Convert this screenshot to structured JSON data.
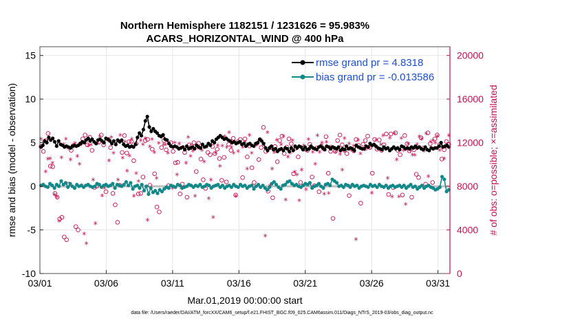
{
  "chart_data": {
    "type": "line",
    "title_line1": "Northern Hemisphere 1182151 / 1231626 = 95.983%",
    "title_line2": "ACARS_HORIZONTAL_WIND @ 400 hPa",
    "xlabel": "Mar.01,2019 00:00:00 start",
    "ylabel_left": "rmse and bias (model - observation)",
    "ylabel_right": "# of obs: o=possible; ×=assimilated",
    "footer": "data file: /Users/raeder/DAI/ATM_forcXX/CAM6_setup/f.e21.FHIST_BGC.f09_025.CAM6assim.011/Diags_NTrS_2019-03/obs_diag_output.nc",
    "x_ticks": [
      "03/01",
      "03/06",
      "03/11",
      "03/16",
      "03/21",
      "03/26",
      "03/31"
    ],
    "x_tick_days": [
      0,
      5,
      10,
      15,
      20,
      25,
      30
    ],
    "xlim": [
      0,
      30.9
    ],
    "ylim_left": [
      -10,
      16
    ],
    "y_ticks_left": [
      "-10",
      "-5",
      "0",
      "5",
      "10",
      "15"
    ],
    "ylim_right": [
      0,
      20800
    ],
    "y_ticks_right": [
      "0",
      "4000",
      "8000",
      "12000",
      "16000",
      "20000"
    ],
    "colors": {
      "rmse": "#000000",
      "bias": "#11888a",
      "obs": "#cc0e4e",
      "zero_line": "#bfbfbf",
      "legend_text": "#1d4fd6",
      "grid": "#e6e6e6"
    },
    "legend": [
      {
        "label": "rmse grand pr = 4.8318",
        "series": "rmse"
      },
      {
        "label": "bias grand pr = -0.013586",
        "series": "bias"
      }
    ],
    "series": [
      {
        "name": "rmse",
        "values": [
          4.5,
          4.7,
          5.2,
          5.0,
          5.6,
          5.3,
          5.5,
          5.1,
          4.6,
          5.2,
          4.8,
          4.7,
          4.5,
          4.6,
          4.5,
          4.4,
          4.6,
          4.7,
          4.6,
          4.7,
          4.9,
          5.1,
          5.0,
          5.3,
          5.5,
          5.2,
          5.4,
          5.1,
          4.9,
          5.3,
          5.4,
          5.2,
          5.0,
          5.5,
          5.4,
          5.2,
          4.9,
          5.2,
          4.8,
          5.3,
          5.1,
          5.3,
          4.8,
          4.6,
          4.7,
          4.5,
          4.6,
          4.5,
          4.8,
          5.6,
          6.1,
          5.8,
          6.5,
          7.5,
          8.0,
          6.8,
          6.3,
          6.6,
          6.3,
          6.1,
          5.8,
          5.7,
          5.9,
          5.4,
          5.3,
          4.9,
          4.6,
          4.5,
          4.6,
          4.5,
          4.3,
          4.4,
          4.5,
          4.2,
          4.6,
          4.3,
          4.4,
          4.5,
          4.3,
          4.7,
          4.5,
          4.4,
          4.8,
          4.5,
          4.6,
          4.9,
          4.7,
          5.2,
          5.0,
          5.4,
          5.6,
          5.8,
          5.6,
          5.4,
          5.5,
          5.3,
          5.2,
          5.0,
          5.1,
          4.9,
          5.0,
          5.1,
          4.8,
          4.9,
          4.6,
          4.8,
          4.9,
          4.7,
          4.6,
          4.9,
          5.0,
          5.4,
          5.2,
          4.9,
          4.4,
          4.1,
          4.4,
          4.6,
          4.2,
          4.3,
          4.0,
          4.2,
          4.3,
          4.1,
          4.4,
          4.3,
          4.0,
          4.4,
          4.1,
          4.6,
          4.4,
          4.6,
          4.5,
          4.2,
          4.5,
          4.2,
          4.3,
          4.6,
          4.4,
          4.3,
          4.2,
          4.5,
          4.6,
          4.4,
          4.2,
          4.6,
          4.5,
          4.3,
          4.5,
          4.4,
          4.3,
          4.5,
          4.1,
          4.3,
          4.2,
          4.6,
          4.3,
          4.4,
          4.3,
          4.1,
          4.7,
          4.5,
          4.4,
          4.3,
          4.3,
          4.6,
          4.5,
          4.9,
          4.7,
          4.8,
          4.6,
          4.4,
          4.3,
          4.2,
          4.5,
          4.3,
          4.4,
          4.1,
          4.3,
          4.5,
          4.3,
          4.4,
          4.2,
          4.6,
          4.5,
          4.3,
          4.4,
          4.3,
          4.5,
          4.4,
          4.6,
          4.4,
          4.5,
          4.3,
          4.2,
          4.5,
          4.2,
          4.1,
          4.4,
          4.3,
          4.4,
          4.4,
          4.6,
          5.0,
          4.5,
          4.6,
          4.7,
          4.5
        ]
      },
      {
        "name": "bias",
        "values": [
          0.1,
          0.2,
          0.0,
          -0.1,
          0.3,
          0.1,
          -0.2,
          0.2,
          0.0,
          0.6,
          0.2,
          0.4,
          -0.1,
          0.3,
          0.0,
          -0.2,
          0.2,
          0.0,
          0.1,
          -0.1,
          0.1,
          0.2,
          0.0,
          -0.1,
          0.0,
          0.3,
          0.2,
          -0.1,
          0.1,
          0.2,
          0.0,
          0.1,
          0.3,
          -0.2,
          0.2,
          0.1,
          0.0,
          0.2,
          0.5,
          0.1,
          0.4,
          -0.3,
          0.0,
          0.1,
          -0.2,
          0.2,
          -0.5,
          0.0,
          -0.9,
          -0.2,
          -0.7,
          -0.5,
          -0.8,
          -0.4,
          -0.6,
          -0.3,
          -0.1,
          -0.2,
          0.1,
          0.0,
          -0.1,
          0.2,
          0.1,
          -0.2,
          -0.1,
          0.0,
          0.2,
          0.1,
          -0.1,
          0.1,
          0.0,
          0.2,
          -0.1,
          0.0,
          0.2,
          0.1,
          -0.2,
          0.0,
          0.1,
          0.2,
          -0.1,
          0.1,
          -0.2,
          0.0,
          0.1,
          -0.1,
          0.2,
          0.0,
          -0.1,
          0.2,
          0.0,
          0.1,
          -0.2,
          0.0,
          0.1,
          -0.3,
          0.0,
          0.2,
          -0.1,
          0.1,
          -0.2,
          -0.4,
          -0.1,
          0.3,
          0.5,
          0.2,
          -0.1,
          -0.3,
          0.1,
          0.2,
          0.5,
          0.6,
          0.3,
          0.1,
          0.2,
          0.0,
          -0.1,
          0.1,
          0.3,
          0.2,
          0.4,
          -0.2,
          0.0,
          0.1,
          0.3,
          0.0,
          -0.2,
          0.2,
          0.3,
          0.1,
          0.8,
          0.6,
          0.4,
          0.0,
          0.1,
          -0.1,
          0.2,
          0.1,
          -0.1,
          0.2,
          0.0,
          0.1,
          -0.2,
          0.0,
          0.1,
          0.0,
          -0.1,
          0.2,
          0.0,
          0.1,
          -0.1,
          0.2,
          0.0,
          -0.1,
          0.1,
          -0.2,
          0.0,
          0.1,
          -0.1,
          0.0,
          0.1,
          -0.1,
          0.1,
          -0.2,
          0.0,
          0.2,
          -0.1,
          0.0,
          -0.3,
          -0.1,
          0.1,
          -0.2,
          0.0,
          0.1,
          -0.1,
          -0.2,
          -0.4,
          -0.3,
          -0.1,
          1.1,
          0.8,
          -0.6,
          -0.4
        ]
      },
      {
        "name": "possible_obs",
        "values": [
          11650,
          11200,
          12200,
          12850,
          9850,
          9800,
          7350,
          7000,
          5000,
          5150,
          3350,
          3100,
          8200,
          11300,
          11750,
          4300,
          4000,
          11900,
          12350,
          12700,
          11800,
          12500,
          11300,
          7900,
          8000,
          12050,
          12700,
          11800,
          7500,
          12300,
          11550,
          7350,
          6300,
          4700,
          8100,
          11100,
          12650,
          11050,
          12100,
          12100,
          10350,
          11900,
          7300,
          7350,
          8850,
          12200,
          12300,
          8100,
          11400,
          9150,
          6100,
          5650,
          11550,
          12200,
          11350,
          8050,
          12000,
          11200,
          10150,
          10200,
          7300,
          8200,
          11100,
          7000,
          11800,
          11700,
          12000,
          9350,
          11950,
          10500,
          8600,
          7800,
          11100,
          10900,
          11650,
          11000,
          11400,
          10550,
          8550,
          10650,
          8400,
          11850,
          11300,
          12400,
          7200,
          12100,
          12300,
          8800,
          12350,
          10700,
          11700,
          9700,
          8350,
          11900,
          10450,
          11550,
          13400,
          11200,
          7550,
          11550,
          6950,
          11650,
          10250,
          12200,
          12600,
          11000,
          11600,
          12350,
          11900,
          9150,
          11500,
          10700,
          8350,
          11450,
          11400,
          11300,
          11850,
          8850,
          8050,
          11500,
          7500,
          11700,
          11450,
          12550,
          9200,
          11200,
          5050,
          11200,
          12200,
          12700,
          11800,
          11300,
          11000,
          7150,
          11400,
          11250,
          12300,
          11750,
          6450,
          11850,
          12200,
          12600,
          11550,
          9200,
          12300,
          11400,
          12250,
          11300,
          11800,
          12800,
          7250,
          12800,
          7900,
          12900,
          11300,
          10900,
          7200,
          12650,
          11900,
          11250,
          7000,
          11350,
          9100,
          8800,
          12450,
          11500,
          8200,
          12900,
          11900,
          8350,
          12350,
          12700,
          11800,
          10500,
          11350,
          12100,
          11850
        ]
      },
      {
        "name": "assimilated_obs",
        "values": [
          12300,
          12050,
          9300,
          10450,
          10500,
          10100,
          7200,
          6950,
          4750,
          10600,
          11800,
          12300,
          11450,
          10400,
          11500,
          11900,
          10700,
          10000,
          8050,
          3600,
          2700,
          11700,
          11750,
          8550,
          4550,
          11900,
          12500,
          7100,
          7800,
          12300,
          10300,
          12450,
          11000,
          11750,
          8550,
          12650,
          10550,
          12050,
          9350,
          10750,
          12300,
          7050,
          9150,
          8400,
          12150,
          11800,
          12350,
          4850,
          11600,
          12250,
          11050,
          8700,
          11900,
          12550,
          11750,
          11800,
          11000,
          11650,
          7800,
          11950,
          9000,
          11850,
          7800,
          11500,
          10100,
          12450,
          10700,
          11200,
          7050,
          11500,
          11400,
          11250,
          10200,
          11550,
          6850,
          8550,
          5100,
          11000,
          11700,
          9800,
          11650,
          12500,
          11550,
          12900,
          11550,
          11000,
          7050,
          11150,
          12000,
          11550,
          12000,
          9550,
          12650,
          11000,
          7750,
          11800,
          12100,
          12250,
          11750,
          3400,
          12900,
          8000,
          9550,
          11050,
          12200,
          11250,
          11800,
          12550,
          6700,
          10650,
          11000,
          12150,
          9250,
          9000,
          6650,
          9450,
          11700,
          7650,
          12250,
          11450,
          11100,
          10000,
          12600,
          11100,
          11950,
          7250,
          12000,
          7300,
          11600,
          11550,
          11100,
          11300,
          10900,
          9450,
          12350,
          11550,
          11850,
          8000,
          11650,
          3100,
          12200,
          10950,
          11300,
          11300,
          11400,
          11500,
          7350,
          11700,
          12200,
          11350,
          11800,
          12600,
          11450,
          8700,
          12400,
          7000,
          12800,
          10400,
          7000,
          12350,
          11250,
          6300,
          11850,
          11250,
          10850,
          10800,
          11800,
          12500,
          12300,
          11200,
          12800,
          8850,
          12050,
          12150,
          11950,
          12550,
          11250,
          11500,
          10500,
          11550,
          12600
        ]
      }
    ]
  }
}
